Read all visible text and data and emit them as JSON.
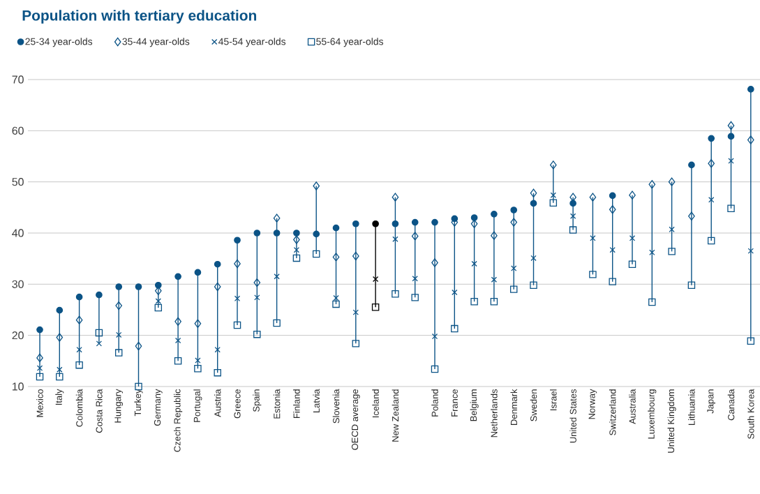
{
  "chart_data": {
    "type": "scatter",
    "title": "Population with tertiary education",
    "categories": [
      "Mexico",
      "Italy",
      "Colombia",
      "Costa Rica",
      "Hungary",
      "Turkey",
      "Germany",
      "Czech Republic",
      "Portugal",
      "Austria",
      "Greece",
      "Spain",
      "Estonia",
      "Finland",
      "Latvia",
      "Slovenia",
      "OECD average",
      "Iceland",
      "New Zealand",
      null,
      "Poland",
      "France",
      "Belgium",
      "Netherlands",
      "Denmark",
      "Sweden",
      "Israel",
      "United States",
      "Norway",
      "Switzerland",
      "Australia",
      "Luxembourg",
      "United Kingdom",
      "Lithuania",
      "Japan",
      "Canada",
      "South Korea"
    ],
    "series": [
      {
        "name": "25-34 year-olds",
        "color": "#0b5386",
        "marker": "circle",
        "colors": [
          "#0b5386",
          "#0b5386",
          "#0b5386",
          "#0b5386",
          "#0b5386",
          "#0b5386",
          "#0b5386",
          "#0b5386",
          "#0b5386",
          "#0b5386",
          "#0b5386",
          "#0b5386",
          "#0b5386",
          "#0b5386",
          "#0b5386",
          "#0b5386",
          "#0b5386",
          "#000000",
          "#0b5386",
          "#0b5386",
          "#0b5386",
          "#0b5386",
          "#0b5386",
          "#0b5386",
          "#0b5386",
          "#0b5386",
          "#0b5386",
          "#0b5386",
          "#0b5386",
          "#0b5386",
          "#0b5386",
          "#0b5386",
          "#0b5386",
          "#0b5386",
          "#0b5386",
          "#0b5386",
          "#0b5386"
        ],
        "values": [
          21.1,
          24.9,
          27.5,
          27.9,
          29.5,
          29.5,
          29.8,
          31.5,
          32.3,
          33.9,
          38.6,
          40.0,
          40.0,
          40.0,
          39.8,
          41.0,
          41.8,
          41.8,
          41.8,
          42.1,
          42.1,
          42.8,
          43.0,
          43.7,
          44.5,
          45.8,
          null,
          45.8,
          null,
          47.3,
          null,
          null,
          null,
          53.3,
          58.5,
          58.9,
          68.1
        ]
      },
      {
        "name": "35-44 year-olds",
        "color": "#0b5386",
        "marker": "diamond",
        "colors": [
          "#0b5386",
          "#0b5386",
          "#0b5386",
          "#0b5386",
          "#0b5386",
          "#0b5386",
          "#0b5386",
          "#0b5386",
          "#0b5386",
          "#0b5386",
          "#0b5386",
          "#0b5386",
          "#0b5386",
          "#0b5386",
          "#0b5386",
          "#0b5386",
          "#0b5386",
          "#000000",
          "#0b5386",
          "#0b5386",
          "#0b5386",
          "#0b5386",
          "#0b5386",
          "#0b5386",
          "#0b5386",
          "#0b5386",
          "#0b5386",
          "#0b5386",
          "#0b5386",
          "#0b5386",
          "#0b5386",
          "#0b5386",
          "#0b5386",
          "#0b5386",
          "#0b5386",
          "#0b5386",
          "#0b5386"
        ],
        "values": [
          15.6,
          19.6,
          23.0,
          null,
          25.8,
          17.9,
          28.7,
          22.7,
          22.3,
          29.5,
          34.0,
          30.3,
          42.9,
          38.7,
          49.2,
          35.3,
          35.5,
          null,
          47.0,
          39.4,
          34.2,
          42.1,
          41.8,
          39.5,
          42.1,
          47.8,
          53.3,
          47.0,
          47.0,
          44.6,
          47.4,
          49.5,
          50.0,
          43.3,
          53.6,
          61.0,
          58.2
        ]
      },
      {
        "name": "45-54 year-olds",
        "color": "#0b5386",
        "marker": "cross",
        "colors": [
          "#0b5386",
          "#0b5386",
          "#0b5386",
          "#0b5386",
          "#0b5386",
          "#0b5386",
          "#0b5386",
          "#0b5386",
          "#0b5386",
          "#0b5386",
          "#0b5386",
          "#0b5386",
          "#0b5386",
          "#0b5386",
          "#0b5386",
          "#0b5386",
          "#0b5386",
          "#000000",
          "#0b5386",
          "#0b5386",
          "#0b5386",
          "#0b5386",
          "#0b5386",
          "#0b5386",
          "#0b5386",
          "#0b5386",
          "#0b5386",
          "#0b5386",
          "#0b5386",
          "#0b5386",
          "#0b5386",
          "#0b5386",
          "#0b5386",
          "#0b5386",
          "#0b5386",
          "#0b5386",
          "#0b5386"
        ],
        "values": [
          13.6,
          13.3,
          17.2,
          18.4,
          20.1,
          null,
          26.7,
          19.0,
          15.1,
          17.2,
          27.2,
          27.4,
          31.5,
          36.7,
          null,
          27.3,
          24.5,
          31.0,
          38.8,
          31.1,
          19.8,
          28.4,
          34.0,
          30.9,
          33.1,
          35.1,
          47.4,
          43.3,
          39.0,
          36.7,
          39.0,
          36.2,
          40.7,
          null,
          46.5,
          54.1,
          36.5
        ]
      },
      {
        "name": "55-64 year-olds",
        "color": "#0b5386",
        "marker": "square",
        "colors": [
          "#0b5386",
          "#0b5386",
          "#0b5386",
          "#0b5386",
          "#0b5386",
          "#0b5386",
          "#0b5386",
          "#0b5386",
          "#0b5386",
          "#0b5386",
          "#0b5386",
          "#0b5386",
          "#0b5386",
          "#0b5386",
          "#0b5386",
          "#0b5386",
          "#0b5386",
          "#000000",
          "#0b5386",
          "#0b5386",
          "#0b5386",
          "#0b5386",
          "#0b5386",
          "#0b5386",
          "#0b5386",
          "#0b5386",
          "#0b5386",
          "#0b5386",
          "#0b5386",
          "#0b5386",
          "#0b5386",
          "#0b5386",
          "#0b5386",
          "#0b5386",
          "#0b5386",
          "#0b5386",
          "#0b5386"
        ],
        "values": [
          11.9,
          11.9,
          14.2,
          20.5,
          16.6,
          10.0,
          25.4,
          15.0,
          13.5,
          12.7,
          22.0,
          20.2,
          22.4,
          35.1,
          35.9,
          26.1,
          18.4,
          25.5,
          28.1,
          27.4,
          13.4,
          21.3,
          26.6,
          26.6,
          29.0,
          29.8,
          45.9,
          40.6,
          31.9,
          30.5,
          33.9,
          26.5,
          36.4,
          29.8,
          38.5,
          44.8,
          18.9
        ]
      }
    ],
    "ylim": [
      10,
      70
    ],
    "yticks": [
      10,
      20,
      30,
      40,
      50,
      60,
      70
    ],
    "grid": "y",
    "legend": "top left"
  }
}
